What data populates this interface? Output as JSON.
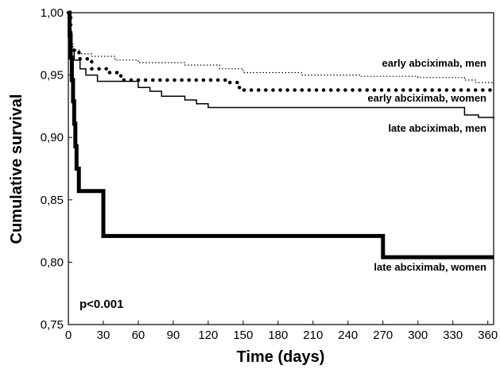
{
  "chart_data": {
    "type": "line",
    "xlabel": "Time (days)",
    "ylabel": "Cumulative survival",
    "xlim": [
      0,
      365
    ],
    "ylim": [
      0.75,
      1.0
    ],
    "x_ticks": [
      "0",
      "30",
      "60",
      "90",
      "120",
      "150",
      "180",
      "210",
      "240",
      "270",
      "300",
      "330",
      "360"
    ],
    "x_tick_values": [
      0,
      30,
      60,
      90,
      120,
      150,
      180,
      210,
      240,
      270,
      300,
      330,
      360
    ],
    "y_ticks": [
      "0,75",
      "0,80",
      "0,85",
      "0,90",
      "0,95",
      "1,00"
    ],
    "y_tick_values": [
      0.75,
      0.8,
      0.85,
      0.9,
      0.95,
      1.0
    ],
    "grid": false,
    "annotation": "p<0.001",
    "series": [
      {
        "name": "early abciximab, men",
        "style": "dotted-thin",
        "points": [
          [
            0,
            1.0
          ],
          [
            1,
            0.985
          ],
          [
            2,
            0.975
          ],
          [
            4,
            0.97
          ],
          [
            10,
            0.967
          ],
          [
            20,
            0.965
          ],
          [
            40,
            0.962
          ],
          [
            60,
            0.96
          ],
          [
            100,
            0.958
          ],
          [
            130,
            0.955
          ],
          [
            150,
            0.952
          ],
          [
            200,
            0.95
          ],
          [
            250,
            0.949
          ],
          [
            300,
            0.948
          ],
          [
            340,
            0.946
          ],
          [
            350,
            0.944
          ],
          [
            365,
            0.942
          ]
        ]
      },
      {
        "name": "early abciximab, women",
        "style": "dotted-thick",
        "points": [
          [
            0,
            1.0
          ],
          [
            2,
            0.972
          ],
          [
            5,
            0.968
          ],
          [
            10,
            0.963
          ],
          [
            20,
            0.955
          ],
          [
            35,
            0.952
          ],
          [
            45,
            0.946
          ],
          [
            125,
            0.946
          ],
          [
            135,
            0.944
          ],
          [
            145,
            0.94
          ],
          [
            150,
            0.938
          ],
          [
            365,
            0.938
          ]
        ]
      },
      {
        "name": "late abciximab, men",
        "style": "solid-thin",
        "points": [
          [
            0,
            1.0
          ],
          [
            2,
            0.97
          ],
          [
            5,
            0.962
          ],
          [
            10,
            0.955
          ],
          [
            15,
            0.95
          ],
          [
            25,
            0.945
          ],
          [
            55,
            0.945
          ],
          [
            60,
            0.94
          ],
          [
            70,
            0.937
          ],
          [
            80,
            0.933
          ],
          [
            100,
            0.93
          ],
          [
            110,
            0.927
          ],
          [
            120,
            0.924
          ],
          [
            320,
            0.924
          ],
          [
            340,
            0.918
          ],
          [
            352,
            0.916
          ],
          [
            365,
            0.915
          ]
        ]
      },
      {
        "name": "late abciximab, women",
        "style": "solid-thick",
        "points": [
          [
            0,
            1.0
          ],
          [
            1,
            0.982
          ],
          [
            2,
            0.964
          ],
          [
            3,
            0.946
          ],
          [
            4,
            0.929
          ],
          [
            5,
            0.911
          ],
          [
            6,
            0.893
          ],
          [
            7,
            0.875
          ],
          [
            9,
            0.857
          ],
          [
            30,
            0.857
          ],
          [
            30,
            0.821
          ],
          [
            270,
            0.821
          ],
          [
            270,
            0.804
          ],
          [
            365,
            0.804
          ]
        ]
      }
    ]
  }
}
